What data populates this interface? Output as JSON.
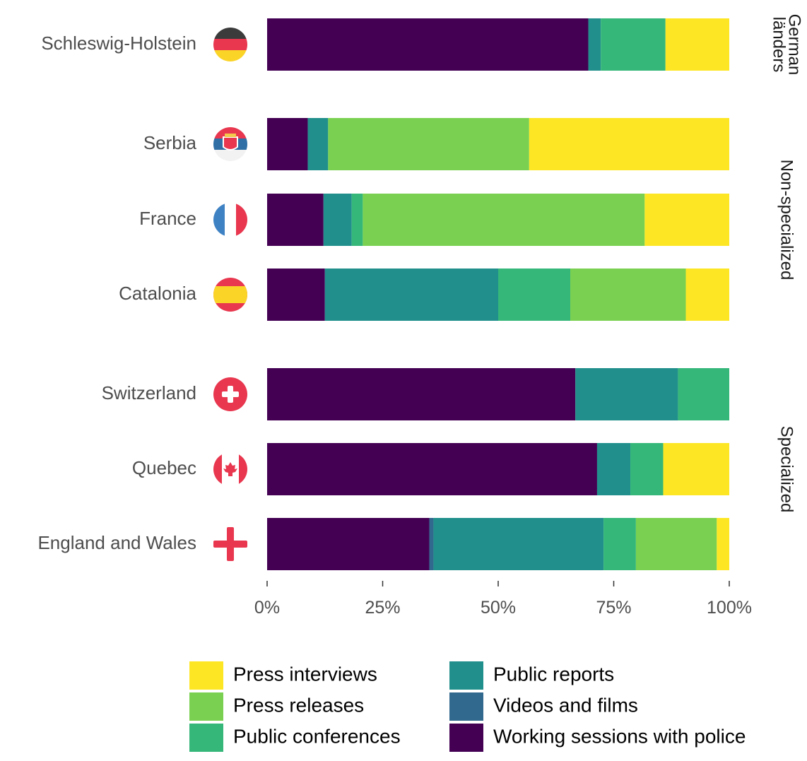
{
  "chart_data": {
    "type": "bar",
    "orientation": "horizontal",
    "stacked": "percent",
    "categories": [
      "Schleswig-Holstein",
      "Serbia",
      "France",
      "Catalonia",
      "Switzerland",
      "Quebec",
      "England and Wales"
    ],
    "facets": [
      {
        "label": [
          "German",
          "länders"
        ],
        "categories": [
          "Schleswig-Holstein"
        ]
      },
      {
        "label": [
          "Non-specialized"
        ],
        "categories": [
          "Serbia",
          "France",
          "Catalonia"
        ]
      },
      {
        "label": [
          "Specialized"
        ],
        "categories": [
          "Switzerland",
          "Quebec",
          "England and Wales"
        ]
      }
    ],
    "series": [
      {
        "name": "Working sessions with police",
        "color": "#440154",
        "values": [
          69.5,
          8.8,
          12.2,
          12.5,
          66.7,
          71.4,
          35.1
        ]
      },
      {
        "name": "Videos and films",
        "color": "#31688e",
        "values": [
          0,
          0,
          0,
          0,
          0,
          0,
          0.9
        ]
      },
      {
        "name": "Public reports",
        "color": "#21908c",
        "values": [
          2.7,
          4.4,
          6.1,
          37.5,
          22.2,
          7.2,
          36.8
        ]
      },
      {
        "name": "Public conferences",
        "color": "#35b779",
        "values": [
          14.0,
          0,
          2.4,
          15.6,
          11.1,
          7.1,
          7.0
        ]
      },
      {
        "name": "Press releases",
        "color": "#7ad151",
        "values": [
          0,
          43.5,
          61.0,
          25.0,
          0,
          0,
          17.5
        ]
      },
      {
        "name": "Press interviews",
        "color": "#fde725",
        "values": [
          13.8,
          43.3,
          18.3,
          9.4,
          0,
          14.3,
          2.7
        ]
      }
    ],
    "xaxis": {
      "ticks": [
        "0%",
        "25%",
        "50%",
        "75%",
        "100%"
      ],
      "range": [
        0,
        100
      ]
    },
    "grid": false,
    "legend": {
      "position": "bottom",
      "columns": [
        [
          "Press interviews",
          "Press releases",
          "Public conferences"
        ],
        [
          "Public reports",
          "Videos and films",
          "Working sessions with police"
        ]
      ]
    },
    "flags": [
      {
        "category": "Schleswig-Holstein",
        "icon": "germany-flag-icon"
      },
      {
        "category": "Serbia",
        "icon": "serbia-flag-icon"
      },
      {
        "category": "France",
        "icon": "france-flag-icon"
      },
      {
        "category": "Catalonia",
        "icon": "spain-flag-icon"
      },
      {
        "category": "Switzerland",
        "icon": "switzerland-flag-icon"
      },
      {
        "category": "Quebec",
        "icon": "canada-flag-icon"
      },
      {
        "category": "England and Wales",
        "icon": "england-flag-icon"
      }
    ]
  }
}
